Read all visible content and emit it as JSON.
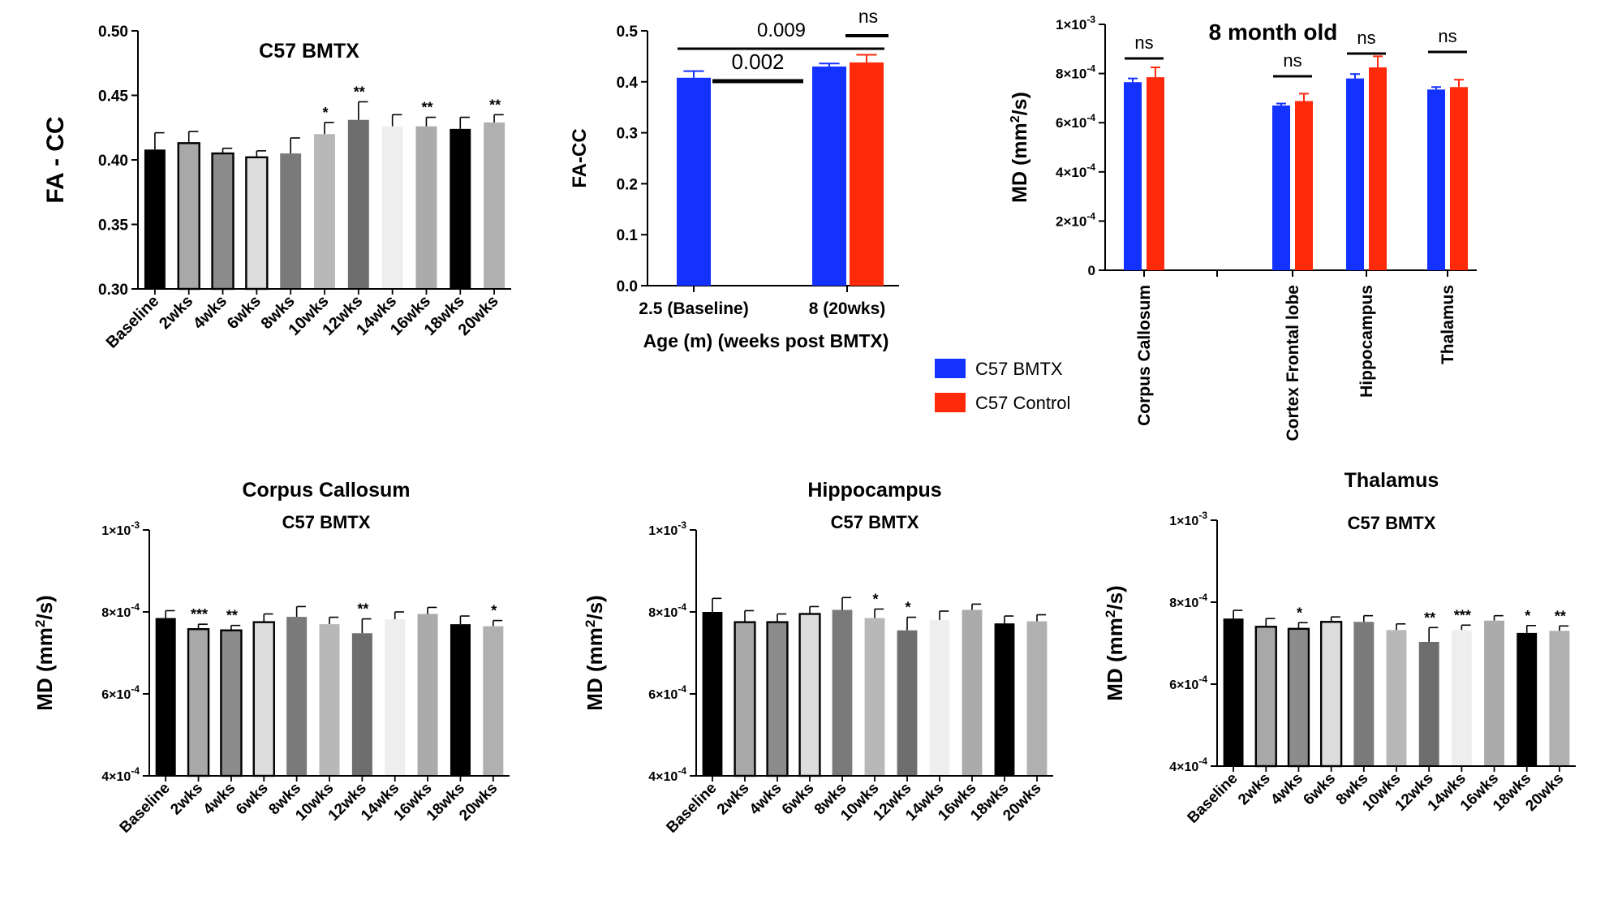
{
  "colors": {
    "bmtx": "#1432ff",
    "control": "#ff2a0a",
    "axis": "#000000",
    "timepoints": [
      "#000000",
      "#a8a8a8",
      "#8c8c8c",
      "#dcdcdc",
      "#7a7a7a",
      "#b8b8b8",
      "#6e6e6e",
      "#eeeeee",
      "#ababab",
      "#000000",
      "#b0b0b0"
    ],
    "bordered": [
      false,
      true,
      true,
      true,
      false,
      false,
      false,
      false,
      false,
      false,
      false
    ]
  },
  "legend": {
    "items": [
      {
        "label": "C57  BMTX",
        "color": "#1432ff"
      },
      {
        "label": "C57 Control",
        "color": "#ff2a0a"
      }
    ]
  },
  "chart_data": [
    {
      "id": "fa_timecourse",
      "type": "bar",
      "title": "C57 BMTX",
      "ylabel": "FA - CC",
      "ylim": [
        0.3,
        0.5
      ],
      "yticks": [
        "0.30",
        "0.35",
        "0.40",
        "0.45",
        "0.50"
      ],
      "categories": [
        "Baseline",
        "2wks",
        "4wks",
        "6wks",
        "8wks",
        "10wks",
        "12wks",
        "14wks",
        "16wks",
        "18wks",
        "20wks"
      ],
      "values": [
        0.408,
        0.413,
        0.405,
        0.402,
        0.405,
        0.42,
        0.431,
        0.426,
        0.426,
        0.424,
        0.429
      ],
      "errors": [
        0.013,
        0.009,
        0.004,
        0.005,
        0.012,
        0.009,
        0.014,
        0.009,
        0.007,
        0.009,
        0.006
      ],
      "annotations": [
        "",
        "",
        "",
        "",
        "",
        "*",
        "**",
        "",
        "**",
        "",
        "**"
      ]
    },
    {
      "id": "fa_age",
      "type": "bar",
      "title": "",
      "ylabel": "FA-CC",
      "xlabel": "Age (m) (weeks post BMTX)",
      "ylim": [
        0.0,
        0.5
      ],
      "yticks": [
        "0.0",
        "0.1",
        "0.2",
        "0.3",
        "0.4",
        "0.5"
      ],
      "categories": [
        "2.5 (Baseline)",
        "8 (20wks)"
      ],
      "series": [
        {
          "name": "C57  BMTX",
          "values": [
            0.408,
            0.43
          ],
          "errors": [
            0.013,
            0.006
          ]
        },
        {
          "name": "C57 Control",
          "values": [
            null,
            0.438
          ],
          "errors": [
            null,
            0.015
          ]
        }
      ],
      "comparisons": [
        "0.009",
        "0.002",
        "ns"
      ]
    },
    {
      "id": "md_8month",
      "type": "bar",
      "title": "8 month old",
      "ylabel": "MD (mm²/s)",
      "ylim": [
        0,
        0.001
      ],
      "yticks": [
        {
          "mant": "0",
          "exp": ""
        },
        {
          "mant": "2×10",
          "exp": "-4"
        },
        {
          "mant": "4×10",
          "exp": "-4"
        },
        {
          "mant": "6×10",
          "exp": "-4"
        },
        {
          "mant": "8×10",
          "exp": "-4"
        },
        {
          "mant": "1×10",
          "exp": "-3"
        }
      ],
      "categories": [
        "Corpus Callosum",
        "Cortex Frontal lobe",
        "Hippocampus",
        "Thalamus"
      ],
      "series": [
        {
          "name": "C57  BMTX",
          "values": [
            0.000765,
            0.00067,
            0.00078,
            0.000735
          ],
          "errors": [
            1.5e-05,
            8e-06,
            1.8e-05,
            1e-05
          ]
        },
        {
          "name": "C57 Control",
          "values": [
            0.000785,
            0.000688,
            0.000825,
            0.000745
          ],
          "errors": [
            4e-05,
            3e-05,
            4.5e-05,
            3e-05
          ]
        }
      ],
      "annotations": [
        "ns",
        "ns",
        "ns",
        "ns"
      ]
    },
    {
      "id": "md_cc",
      "type": "bar",
      "title": "Corpus Callosum",
      "subtitle": "C57 BMTX",
      "ylabel": "MD (mm²/s)",
      "ylim": [
        0.0004,
        0.001
      ],
      "yticks": [
        {
          "mant": "4×10",
          "exp": "-4"
        },
        {
          "mant": "6×10",
          "exp": "-4"
        },
        {
          "mant": "8×10",
          "exp": "-4"
        },
        {
          "mant": "1×10",
          "exp": "-3"
        }
      ],
      "categories": [
        "Baseline",
        "2wks",
        "4wks",
        "6wks",
        "8wks",
        "10wks",
        "12wks",
        "14wks",
        "16wks",
        "18wks",
        "20wks"
      ],
      "values": [
        0.000785,
        0.000758,
        0.000755,
        0.000775,
        0.000788,
        0.00077,
        0.000748,
        0.000782,
        0.000795,
        0.00077,
        0.000765
      ],
      "errors": [
        1.8e-05,
        1.2e-05,
        1.2e-05,
        2e-05,
        2.5e-05,
        1.7e-05,
        3.5e-05,
        1.8e-05,
        1.6e-05,
        2e-05,
        1.4e-05
      ],
      "annotations": [
        "",
        "***",
        "**",
        "",
        "",
        "",
        "**",
        "",
        "",
        "",
        "*"
      ]
    },
    {
      "id": "md_hippo",
      "type": "bar",
      "title": "Hippocampus",
      "subtitle": "C57 BMTX",
      "ylabel": "MD (mm²/s)",
      "ylim": [
        0.0004,
        0.001
      ],
      "yticks": [
        {
          "mant": "4×10",
          "exp": "-4"
        },
        {
          "mant": "6×10",
          "exp": "-4"
        },
        {
          "mant": "8×10",
          "exp": "-4"
        },
        {
          "mant": "1×10",
          "exp": "-3"
        }
      ],
      "categories": [
        "Baseline",
        "2wks",
        "4wks",
        "6wks",
        "8wks",
        "10wks",
        "12wks",
        "14wks",
        "16wks",
        "18wks",
        "20wks"
      ],
      "values": [
        0.0008,
        0.000775,
        0.000775,
        0.000795,
        0.000805,
        0.000785,
        0.000755,
        0.00078,
        0.000805,
        0.000772,
        0.000777
      ],
      "errors": [
        3.3e-05,
        2.8e-05,
        2e-05,
        1.8e-05,
        3e-05,
        2.2e-05,
        3.2e-05,
        2.2e-05,
        1.4e-05,
        1.8e-05,
        1.6e-05
      ],
      "annotations": [
        "",
        "",
        "",
        "",
        "",
        "*",
        "*",
        "",
        "",
        "",
        ""
      ]
    },
    {
      "id": "md_thal",
      "type": "bar",
      "title": "Thalamus",
      "subtitle": "C57 BMTX",
      "ylabel": "MD (mm²/s)",
      "ylim": [
        0.0004,
        0.001
      ],
      "yticks": [
        {
          "mant": "4×10",
          "exp": "-4"
        },
        {
          "mant": "6×10",
          "exp": "-4"
        },
        {
          "mant": "8×10",
          "exp": "-4"
        },
        {
          "mant": "1×10",
          "exp": "-3"
        }
      ],
      "categories": [
        "Baseline",
        "2wks",
        "4wks",
        "6wks",
        "8wks",
        "10wks",
        "12wks",
        "14wks",
        "16wks",
        "18wks",
        "20wks"
      ],
      "values": [
        0.00076,
        0.00074,
        0.000735,
        0.000752,
        0.000752,
        0.000732,
        0.000703,
        0.000732,
        0.000755,
        0.000725,
        0.00073
      ],
      "errors": [
        2e-05,
        2e-05,
        1.5e-05,
        1.2e-05,
        1.5e-05,
        1.5e-05,
        3.5e-05,
        1.2e-05,
        1.2e-05,
        1.8e-05,
        1.2e-05
      ],
      "annotations": [
        "",
        "",
        "*",
        "",
        "",
        "",
        "**",
        "***",
        "",
        "*",
        "**"
      ]
    }
  ]
}
